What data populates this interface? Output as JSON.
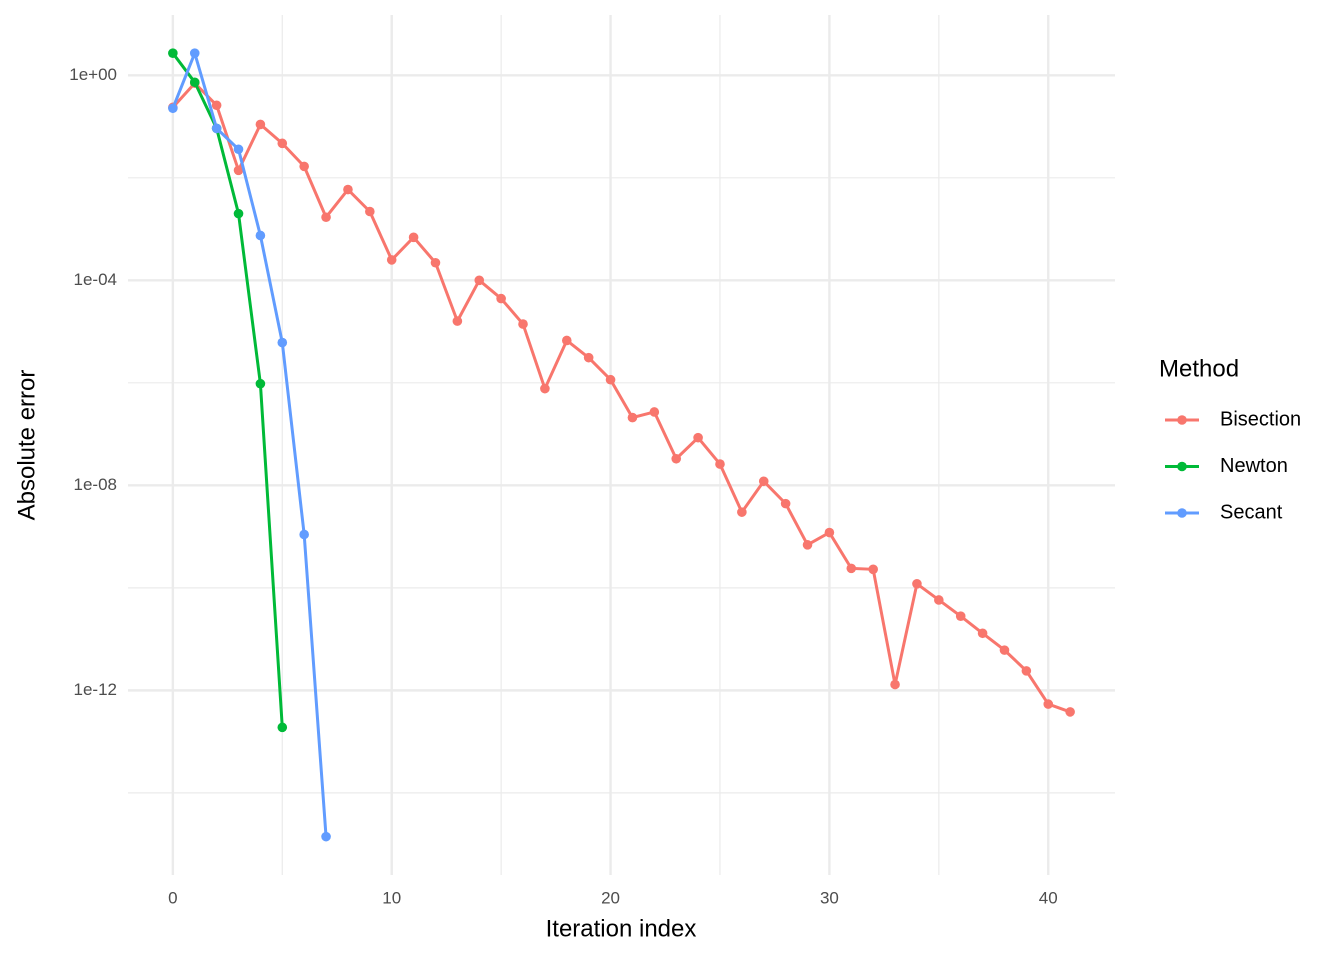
{
  "chart_data": {
    "type": "line",
    "x_label": "Iteration index",
    "y_label": "Absolute error",
    "legend_title": "Method",
    "legend_position": "right",
    "log_y": true,
    "grid": true,
    "xlim": [
      -2.05,
      43.05
    ],
    "xticks": [
      0,
      10,
      20,
      30,
      40
    ],
    "minor_xticks": [
      5,
      15,
      25,
      35
    ],
    "ylim": [
      2.5e-16,
      15
    ],
    "yticks": [
      {
        "value": 1,
        "label": "1e+00"
      },
      {
        "value": 0.0001,
        "label": "1e-04"
      },
      {
        "value": 1e-08,
        "label": "1e-08"
      },
      {
        "value": 1e-12,
        "label": "1e-12"
      }
    ],
    "minor_yticks": [
      0.01,
      1e-06,
      1e-10,
      1e-14
    ],
    "series": [
      {
        "name": "Bisection",
        "color": "#F8766D",
        "x": [
          0,
          1,
          2,
          3,
          4,
          5,
          6,
          7,
          8,
          9,
          10,
          11,
          12,
          13,
          14,
          15,
          16,
          17,
          18,
          19,
          20,
          21,
          22,
          23,
          24,
          25,
          26,
          27,
          28,
          29,
          30,
          31,
          32,
          33,
          34,
          35,
          36,
          37,
          38,
          39,
          40,
          41
        ],
        "values": [
          0.237,
          0.7,
          0.26,
          0.014,
          0.11,
          0.047,
          0.0167,
          0.0017,
          0.0059,
          0.0022,
          0.00025,
          0.00069,
          0.00022,
          1.6e-05,
          0.0001,
          4.4e-05,
          1.4e-05,
          7.7e-07,
          6.7e-06,
          3.1e-06,
          1.15e-06,
          2.1e-07,
          2.7e-07,
          3.3e-08,
          8.5e-08,
          2.6e-08,
          3e-09,
          1.2e-08,
          4.4e-09,
          6.9e-10,
          1.2e-09,
          2.4e-10,
          2.3e-10,
          1.3e-12,
          1.2e-10,
          5.8e-11,
          2.8e-11,
          1.3e-11,
          6.1e-12,
          2.4e-12,
          5.4e-13,
          3.8e-13
        ]
      },
      {
        "name": "Newton",
        "color": "#00BA38",
        "x": [
          0,
          1,
          2,
          3,
          4,
          5
        ],
        "values": [
          2.7,
          0.73,
          0.092,
          0.002,
          9.6e-07,
          1.9e-13
        ]
      },
      {
        "name": "Secant",
        "color": "#619CFF",
        "x": [
          0,
          1,
          2,
          3,
          4,
          5,
          6,
          7
        ],
        "values": [
          0.227,
          2.7,
          0.092,
          0.036,
          0.00075,
          6.1e-06,
          1.1e-09,
          1.4e-15
        ]
      }
    ]
  }
}
